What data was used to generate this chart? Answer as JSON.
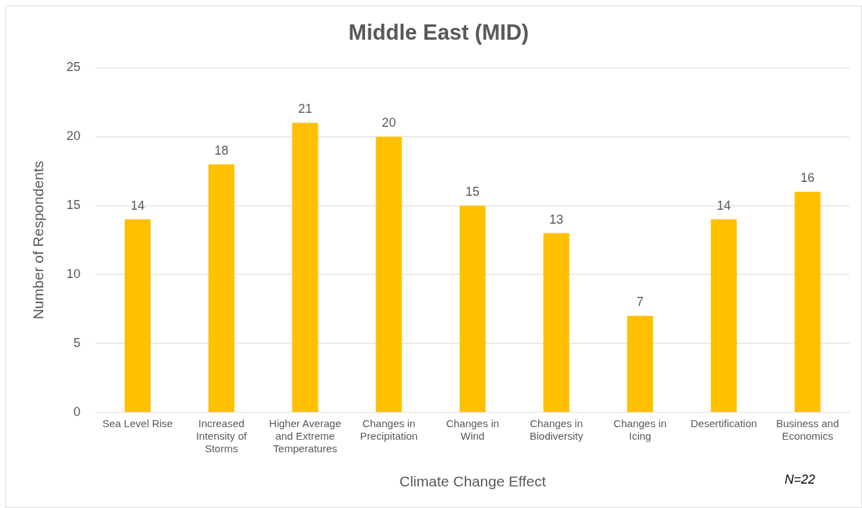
{
  "chart_data": {
    "type": "bar",
    "title": "Middle East (MID)",
    "xlabel": "Climate Change Effect",
    "ylabel": "Number of Respondents",
    "categories": [
      "Sea Level Rise",
      "Increased Intensity of Storms",
      "Higher Average and Extreme Temperatures",
      "Changes in Precipitation",
      "Changes in Wind",
      "Changes in Biodiversity",
      "Changes in Icing",
      "Desertification",
      "Business and Economics"
    ],
    "values": [
      14,
      18,
      21,
      20,
      15,
      13,
      7,
      14,
      16
    ],
    "color": "#ffc000",
    "ylim": [
      0,
      25
    ],
    "yticks": [
      0,
      5,
      10,
      15,
      20,
      25
    ],
    "grid": "y",
    "legend": false,
    "data_labels": true,
    "annotations": [
      "N=22"
    ]
  }
}
